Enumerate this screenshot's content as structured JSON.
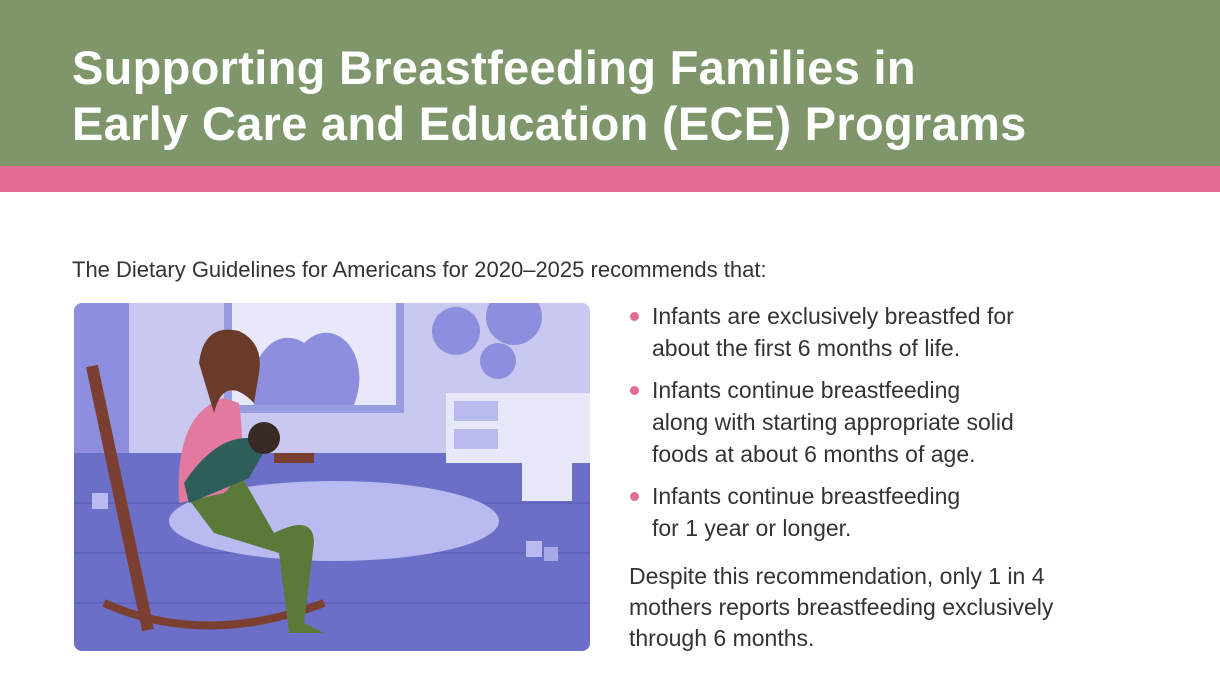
{
  "header": {
    "title_line1": "Supporting Breastfeeding Families in",
    "title_line2": "Early Care and Education (ECE) Programs"
  },
  "colors": {
    "header_bg": "#7f966a",
    "stripe": "#e36c94",
    "bullet": "#e36c94",
    "illustration_bg": "#6c6fc8"
  },
  "intro": "The Dietary Guidelines for Americans for 2020–2025 recommends that:",
  "illustration": {
    "icon": "mother-breastfeeding-in-rocking-chair-illustration"
  },
  "bullets": [
    {
      "line1": "Infants are exclusively breastfed for",
      "line2": "about the first 6 months of life."
    },
    {
      "line1": "Infants continue breastfeeding",
      "line2": "along with starting appropriate solid",
      "line3": "foods at about 6 months of age."
    },
    {
      "line1": "Infants continue breastfeeding",
      "line2": "for 1 year or longer."
    }
  ],
  "despite": "Despite this recommendation, only 1 in 4 mothers reports breastfeeding exclusively through 6 months."
}
